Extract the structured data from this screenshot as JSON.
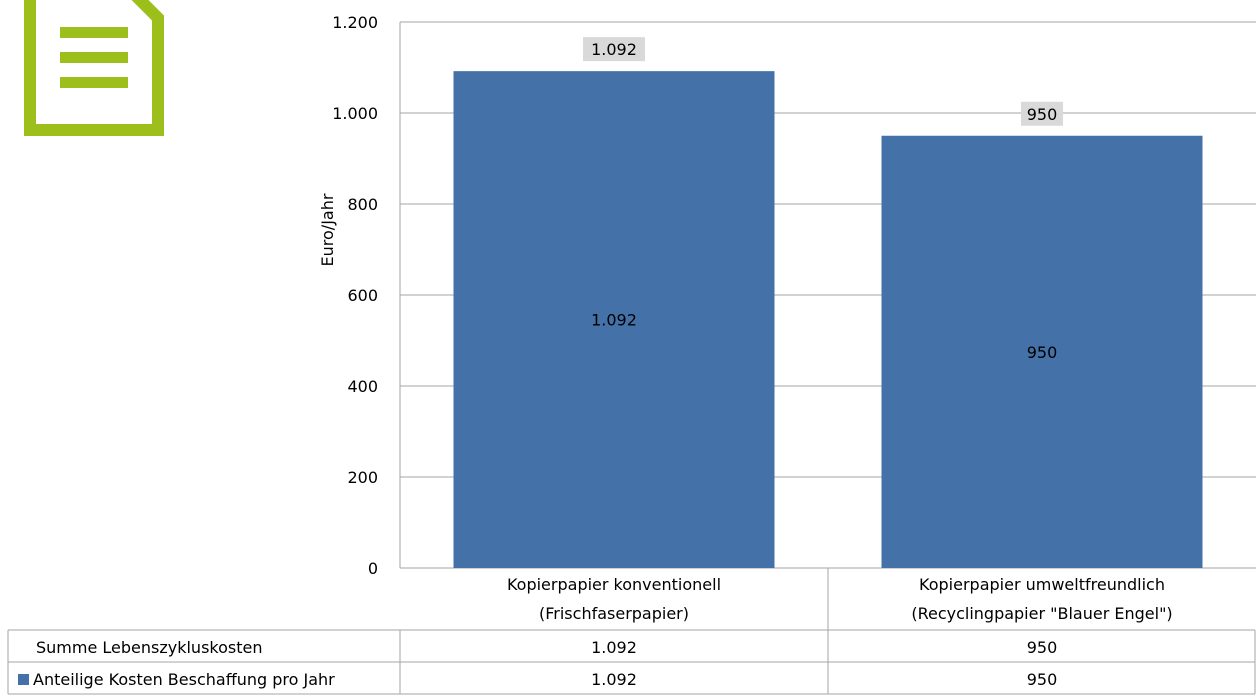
{
  "colors": {
    "bar": "#4472a8",
    "label_box": "#d9d9d9",
    "gridline": "#a6a6a6",
    "icon_green": "#9dbf1c"
  },
  "icon": {
    "name": "document-icon"
  },
  "chart_data": {
    "type": "bar",
    "title": "",
    "xlabel": "",
    "ylabel": "Euro/Jahr",
    "ylim": [
      0,
      1200
    ],
    "yticks": [
      0,
      200,
      400,
      600,
      800,
      1000,
      1200
    ],
    "ytick_labels": [
      "0",
      "200",
      "400",
      "600",
      "800",
      "1.000",
      "1.200"
    ],
    "categories": [
      [
        "Kopierpapier konventionell",
        "(Frischfaserpapier)"
      ],
      [
        "Kopierpapier umweltfreundlich",
        "(Recyclingpapier \"Blauer Engel\")"
      ]
    ],
    "series": [
      {
        "name": "Anteilige Kosten Beschaffung pro Jahr",
        "values": [
          1092,
          950
        ],
        "labels": [
          "1.092",
          "950"
        ]
      }
    ],
    "totals": {
      "name": "Summe Lebenszykluskosten",
      "values": [
        1092,
        950
      ],
      "labels": [
        "1.092",
        "950"
      ]
    },
    "grid": true,
    "legend": "data-table"
  }
}
